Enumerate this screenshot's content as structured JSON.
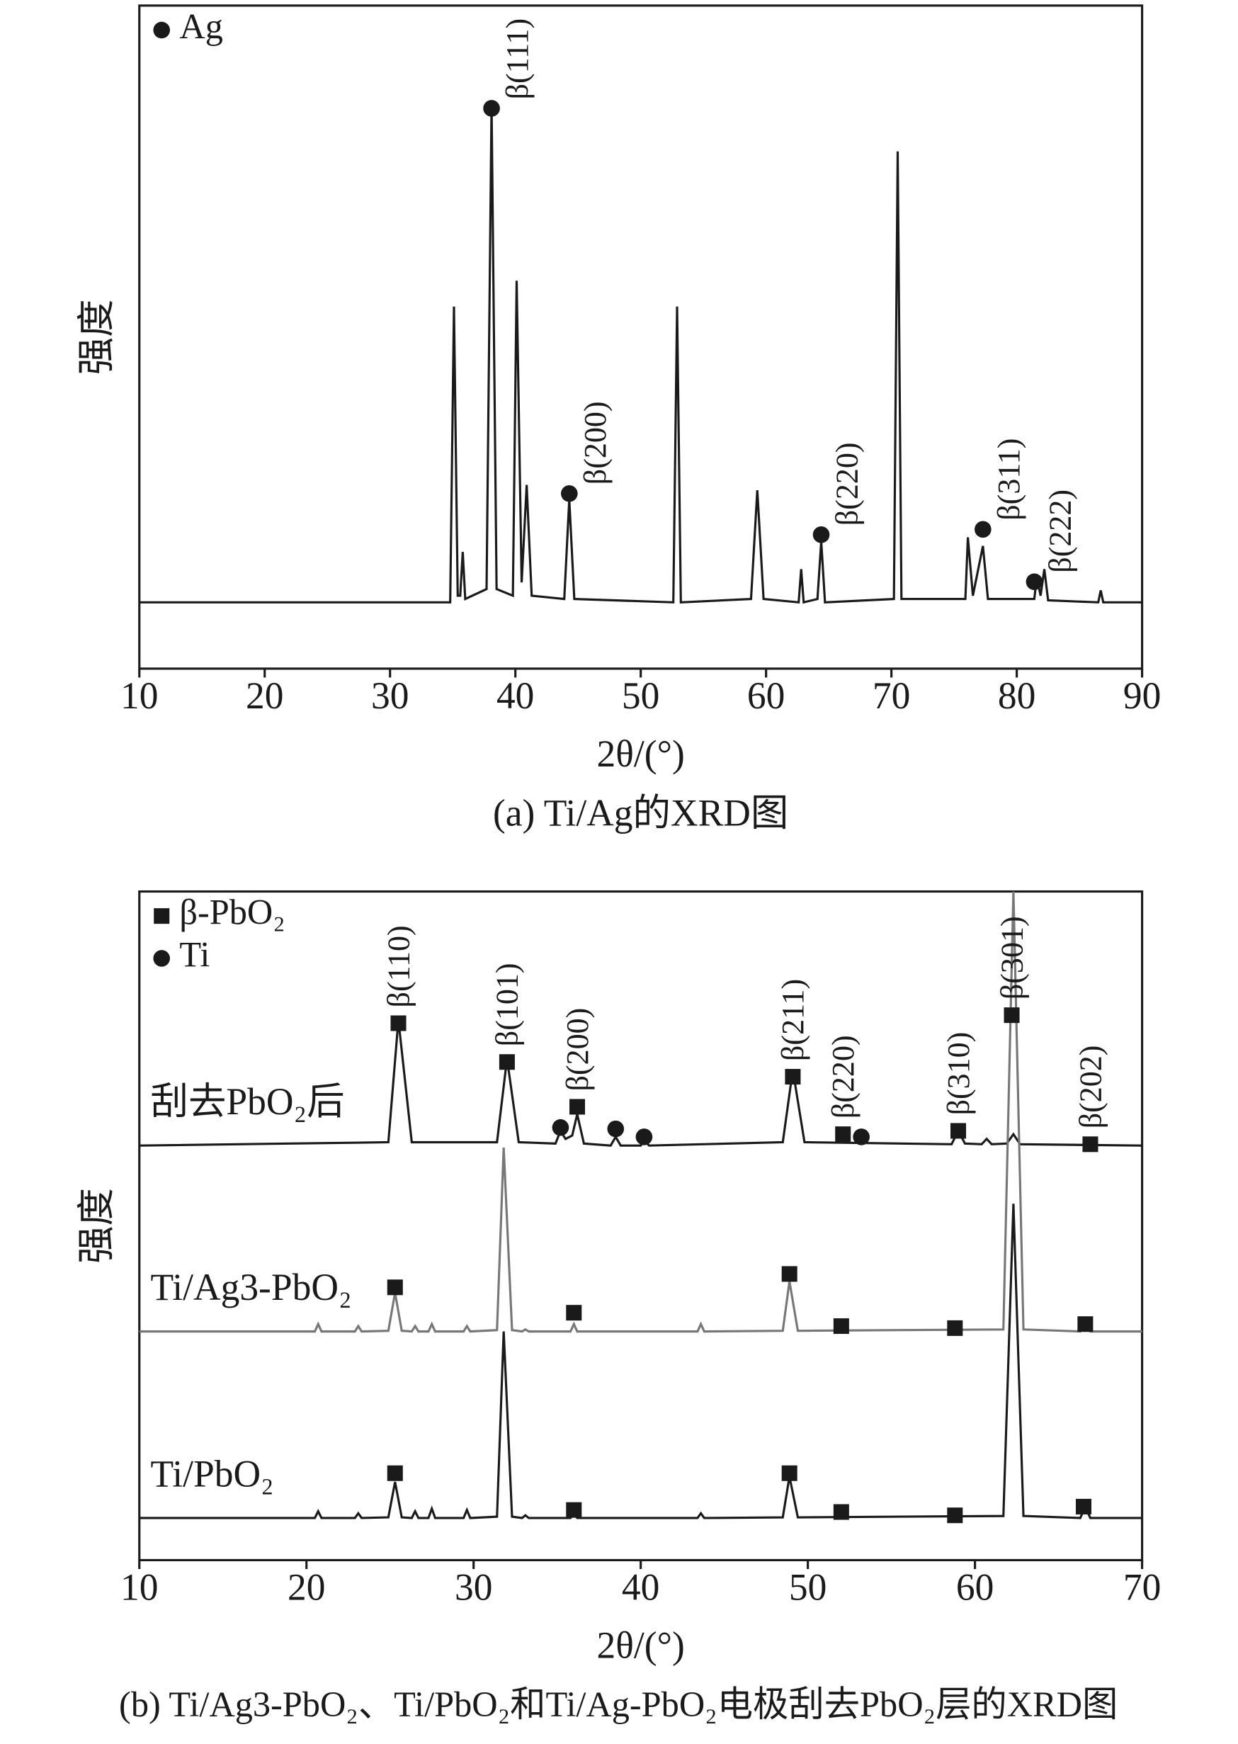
{
  "chart_data": [
    {
      "type": "line",
      "caption": "(a) Ti/Ag的XRD图",
      "xlabel": "2θ/(°)",
      "ylabel": "强度",
      "xlim": [
        10,
        90
      ],
      "xticks": [
        10,
        20,
        30,
        40,
        50,
        60,
        70,
        80,
        90
      ],
      "ylim": [
        0,
        100
      ],
      "series": [
        {
          "color": "#1a1a1a",
          "x": [
            10,
            34.8,
            35.1,
            35.4,
            35.6,
            35.8,
            36.0,
            37.7,
            38.1,
            38.5,
            39.8,
            40.1,
            40.5,
            40.9,
            41.3,
            43.9,
            44.3,
            44.7,
            52.6,
            52.9,
            53.2,
            58.8,
            59.3,
            59.8,
            62.6,
            62.8,
            63.0,
            64.1,
            64.4,
            64.7,
            70.2,
            70.5,
            70.8,
            75.9,
            76.1,
            76.5,
            77.3,
            77.7,
            81.4,
            81.6,
            81.9,
            82.2,
            82.5,
            86.5,
            86.7,
            86.9,
            90
          ],
          "values": [
            10,
            10,
            54.6,
            11,
            11,
            17.6,
            10.5,
            12,
            85,
            12,
            11,
            58.5,
            13,
            27.7,
            11,
            10.5,
            25.5,
            10.5,
            10,
            54.6,
            10,
            10.5,
            26.9,
            10.5,
            10,
            15,
            10,
            10.5,
            19.2,
            10,
            10.5,
            78,
            10.5,
            10.5,
            19.8,
            11,
            18.5,
            10.5,
            10.5,
            13.8,
            11,
            15,
            10.3,
            10,
            11.8,
            10,
            10
          ]
        }
      ],
      "markers": [
        {
          "name": "Ag",
          "shape": "circle",
          "color": "#1a1a1a",
          "x": [
            38.1,
            44.3,
            64.4,
            77.3,
            81.4
          ],
          "values": [
            84.5,
            26.4,
            20.2,
            21,
            13.1
          ],
          "labels": [
            "β(111)",
            "β(200)",
            "β(220)",
            "β(311)",
            "β(222)"
          ]
        }
      ]
    },
    {
      "type": "line",
      "caption": "(b) Ti/Ag3-PbO₂、Ti/PbO₂和Ti/Ag-PbO₂电极刮去PbO₂层的XRD图",
      "xlabel": "2θ/(°)",
      "ylabel": "强度",
      "xlim": [
        10,
        70
      ],
      "xticks": [
        10,
        20,
        30,
        40,
        50,
        60,
        70
      ],
      "ylim": [
        0,
        100
      ],
      "series": [
        {
          "name": "刮去PbO₂后",
          "color": "#1a1a1a",
          "x": [
            10,
            24.9,
            25.5,
            26.3,
            31.4,
            32.0,
            32.7,
            34.9,
            35.2,
            35.5,
            35.9,
            36.2,
            36.6,
            38.2,
            38.5,
            38.8,
            40.0,
            40.2,
            40.5,
            48.5,
            49.1,
            49.8,
            58.6,
            59.0,
            59.4,
            60.4,
            60.7,
            61.0,
            61.9,
            62.3,
            62.7,
            70
          ],
          "values": [
            62,
            62.5,
            80.8,
            62.5,
            62.5,
            75,
            62.5,
            62.3,
            64.2,
            63,
            63.5,
            66.7,
            62.3,
            62,
            63.3,
            62,
            62,
            62.8,
            62,
            62.5,
            73.3,
            62.5,
            62.2,
            64.2,
            62.3,
            62.2,
            63,
            62.2,
            62.3,
            63.7,
            62.2,
            62
          ]
        },
        {
          "name": "Ti/Ag3-PbO₂",
          "color": "#777777",
          "x": [
            10,
            20.5,
            20.7,
            20.9,
            22.9,
            23.1,
            23.3,
            24.9,
            25.3,
            25.7,
            26.3,
            26.5,
            26.7,
            27.3,
            27.5,
            27.7,
            29.4,
            29.6,
            29.8,
            31.4,
            31.8,
            32.3,
            32.9,
            33.1,
            33.3,
            35.8,
            36.0,
            36.2,
            43.4,
            43.6,
            43.8,
            48.5,
            48.9,
            49.4,
            61.7,
            62.3,
            62.9,
            66.3,
            66.6,
            66.9,
            70
          ],
          "values": [
            34.2,
            34.2,
            35.3,
            34.2,
            34.2,
            35,
            34.2,
            34.3,
            40,
            34.3,
            34.2,
            35,
            34.2,
            34.2,
            35.3,
            34.2,
            34.2,
            35,
            34.2,
            34.4,
            61.7,
            34.4,
            34.2,
            34.5,
            34.2,
            34.2,
            35.3,
            34.2,
            34.2,
            35.3,
            34.2,
            34.3,
            41.7,
            34.3,
            34.5,
            100,
            34.5,
            34.2,
            35,
            34.2,
            34.2
          ]
        },
        {
          "name": "Ti/PbO₂",
          "color": "#1a1a1a",
          "x": [
            10,
            20.5,
            20.7,
            20.9,
            22.9,
            23.1,
            23.3,
            24.9,
            25.3,
            25.7,
            26.3,
            26.5,
            26.7,
            27.3,
            27.5,
            27.7,
            29.4,
            29.6,
            29.8,
            31.4,
            31.8,
            32.3,
            32.9,
            33.1,
            33.3,
            35.8,
            36.0,
            36.2,
            43.4,
            43.6,
            43.8,
            48.5,
            48.9,
            49.4,
            61.7,
            62.3,
            62.9,
            66.3,
            66.6,
            66.9,
            70
          ],
          "values": [
            6.3,
            6.3,
            7.3,
            6.3,
            6.3,
            7,
            6.3,
            6.4,
            11.7,
            6.4,
            6.3,
            7.3,
            6.3,
            6.3,
            7.7,
            6.3,
            6.3,
            7.5,
            6.3,
            6.5,
            34.2,
            6.5,
            6.3,
            6.7,
            6.3,
            6.3,
            7.3,
            6.3,
            6.3,
            7,
            6.3,
            6.4,
            12.5,
            6.4,
            6.6,
            53.3,
            6.6,
            6.3,
            8,
            6.3,
            6.3
          ]
        }
      ],
      "markers": [
        {
          "name": "β-PbO₂",
          "shape": "square",
          "color": "#1a1a1a",
          "x": [
            25.5,
            32.0,
            36.2,
            49.1,
            52.1,
            59.0,
            62.2,
            66.9,
            25.3,
            36.0,
            48.9,
            52.0,
            58.8,
            66.6,
            25.3,
            36.0,
            48.9,
            52.0,
            58.8,
            66.5
          ],
          "values": [
            80.3,
            74.5,
            67.8,
            72.3,
            63.7,
            64.2,
            81.5,
            62.2,
            40.8,
            37,
            42.8,
            35,
            34.7,
            35.3,
            13,
            7.5,
            13,
            7.2,
            6.7,
            8
          ],
          "labels": [
            "β(110)",
            "β(101)",
            "β(200)",
            "β(211)",
            "β(220)",
            "β(310)",
            "β(301)",
            "β(202)",
            null,
            null,
            null,
            null,
            null,
            null,
            null,
            null,
            null,
            null,
            null,
            null
          ]
        },
        {
          "name": "Ti",
          "shape": "circle",
          "color": "#1a1a1a",
          "x": [
            35.2,
            38.5,
            40.2,
            53.2
          ],
          "values": [
            64.7,
            64.5,
            63.3,
            63.3
          ],
          "labels": [
            null,
            null,
            null,
            null
          ]
        }
      ]
    }
  ]
}
